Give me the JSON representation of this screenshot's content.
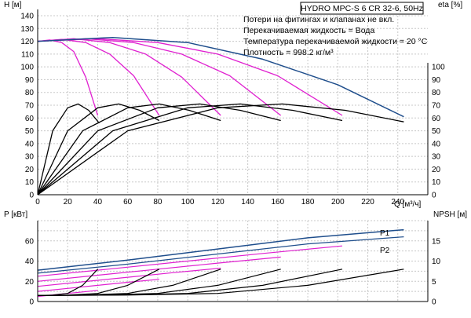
{
  "title": "HYDRO MPC-S 6 CR 32-6, 50Hz",
  "notes": [
    "Потери на фитингах и клапанах не вкл.",
    "Перекачиваемая жидкость = Вода",
    "Температура перекачиваемой жидкости = 20 °C",
    "Плотность = 998.2 кг/м³"
  ],
  "colors": {
    "pump_curve": "#e020d0",
    "power_curve": "#e020d0",
    "system_max": "#1f4e8c",
    "efficiency": "#000000",
    "npsh": "#000000",
    "grid": "#c8c8c8"
  },
  "chart_data": [
    {
      "type": "line",
      "title": "HYDRO MPC-S 6 CR 32-6, 50Hz",
      "xlabel": "Q [м³/ч]",
      "ylabel": "H [м]",
      "ylabel2": "eta [%]",
      "xlim": [
        0,
        260
      ],
      "ylim": [
        0,
        140
      ],
      "y2lim": [
        0,
        140
      ],
      "xticks": [
        0,
        20,
        40,
        60,
        80,
        100,
        120,
        140,
        160,
        180,
        200,
        220,
        240
      ],
      "yticks": [
        0,
        10,
        20,
        30,
        40,
        50,
        60,
        70,
        80,
        90,
        100,
        110,
        120,
        130,
        140
      ],
      "y2ticks": [
        0,
        10,
        20,
        30,
        40,
        50,
        60,
        70,
        80,
        90,
        100
      ],
      "grid": true,
      "series": [
        {
          "role": "head",
          "x": [
            0,
            8,
            16,
            24,
            32,
            40
          ],
          "values": [
            120,
            121,
            119,
            112,
            92,
            62
          ]
        },
        {
          "role": "head",
          "x": [
            0,
            16,
            32,
            48,
            64,
            81
          ],
          "values": [
            120,
            121.5,
            119,
            110,
            93,
            62
          ]
        },
        {
          "role": "head",
          "x": [
            0,
            24,
            48,
            72,
            96,
            122
          ],
          "values": [
            120,
            122,
            119,
            110,
            92,
            62
          ]
        },
        {
          "role": "head",
          "x": [
            0,
            32,
            64,
            96,
            128,
            162
          ],
          "values": [
            120,
            122,
            119,
            110,
            93,
            62
          ]
        },
        {
          "role": "head",
          "x": [
            0,
            40,
            80,
            120,
            160,
            203
          ],
          "values": [
            120,
            122,
            119,
            110,
            93,
            62
          ]
        },
        {
          "role": "head_max",
          "x": [
            0,
            50,
            100,
            150,
            200,
            244
          ],
          "values": [
            120,
            123,
            119,
            106,
            86,
            61
          ]
        },
        {
          "role": "eta",
          "x": [
            0,
            10,
            20,
            27,
            34,
            41
          ],
          "values": [
            0,
            50,
            68,
            71,
            66,
            56
          ]
        },
        {
          "role": "eta",
          "x": [
            0,
            20,
            40,
            54,
            68,
            81
          ],
          "values": [
            0,
            50,
            68,
            71,
            66,
            58
          ]
        },
        {
          "role": "eta",
          "x": [
            0,
            30,
            60,
            81,
            101,
            122
          ],
          "values": [
            0,
            50,
            68,
            71,
            66,
            58
          ]
        },
        {
          "role": "eta",
          "x": [
            0,
            40,
            80,
            108,
            135,
            162
          ],
          "values": [
            0,
            50,
            68,
            71,
            66,
            58
          ]
        },
        {
          "role": "eta",
          "x": [
            0,
            50,
            100,
            135,
            170,
            203
          ],
          "values": [
            0,
            50,
            68,
            71,
            66,
            58
          ]
        },
        {
          "role": "eta",
          "x": [
            0,
            60,
            120,
            163,
            205,
            244
          ],
          "values": [
            0,
            50,
            68,
            71,
            66,
            57
          ]
        }
      ]
    },
    {
      "type": "line",
      "xlim": [
        0,
        260
      ],
      "ylabel": "P [кВт]",
      "ylabel2": "NPSH [м]",
      "ylim": [
        0,
        80
      ],
      "y2lim": [
        0,
        20
      ],
      "yticks": [
        0,
        20,
        40,
        60
      ],
      "y2ticks": [
        0,
        5,
        10,
        15
      ],
      "grid": true,
      "series": [
        {
          "name": "P1",
          "x": [
            0,
            60,
            120,
            180,
            244
          ],
          "values": [
            31,
            41,
            52,
            63,
            71
          ]
        },
        {
          "name": "P2",
          "x": [
            0,
            60,
            120,
            180,
            244
          ],
          "values": [
            28,
            37,
            47,
            57,
            64
          ]
        },
        {
          "role": "power",
          "x": [
            0,
            10,
            20,
            30,
            40
          ],
          "values": [
            5,
            6.5,
            8,
            9.5,
            11
          ]
        },
        {
          "role": "power",
          "x": [
            0,
            20,
            40,
            60,
            81
          ],
          "values": [
            10,
            13,
            16,
            19,
            22
          ]
        },
        {
          "role": "power",
          "x": [
            0,
            30,
            60,
            90,
            122
          ],
          "values": [
            15,
            19.5,
            24,
            28.5,
            33
          ]
        },
        {
          "role": "power",
          "x": [
            0,
            40,
            80,
            120,
            162
          ],
          "values": [
            20,
            26,
            32,
            38,
            44
          ]
        },
        {
          "role": "power",
          "x": [
            0,
            50,
            100,
            150,
            203
          ],
          "values": [
            25,
            32.5,
            40,
            47.5,
            55
          ]
        },
        {
          "role": "npsh",
          "x": [
            0,
            10,
            20,
            30,
            40
          ],
          "values": [
            1.5,
            1.6,
            2.0,
            4.0,
            8.0
          ]
        },
        {
          "role": "npsh",
          "x": [
            0,
            20,
            40,
            60,
            81
          ],
          "values": [
            1.5,
            1.6,
            2.0,
            4.0,
            8.0
          ]
        },
        {
          "role": "npsh",
          "x": [
            0,
            30,
            60,
            90,
            122
          ],
          "values": [
            1.5,
            1.6,
            2.0,
            4.0,
            8.0
          ]
        },
        {
          "role": "npsh",
          "x": [
            0,
            40,
            80,
            120,
            162
          ],
          "values": [
            1.5,
            1.6,
            2.0,
            4.0,
            8.0
          ]
        },
        {
          "role": "npsh",
          "x": [
            0,
            50,
            100,
            150,
            203
          ],
          "values": [
            1.5,
            1.6,
            2.0,
            4.0,
            8.0
          ]
        },
        {
          "role": "npsh",
          "x": [
            0,
            60,
            120,
            180,
            244
          ],
          "values": [
            1.5,
            1.6,
            2.0,
            4.0,
            8.0
          ]
        }
      ]
    }
  ]
}
